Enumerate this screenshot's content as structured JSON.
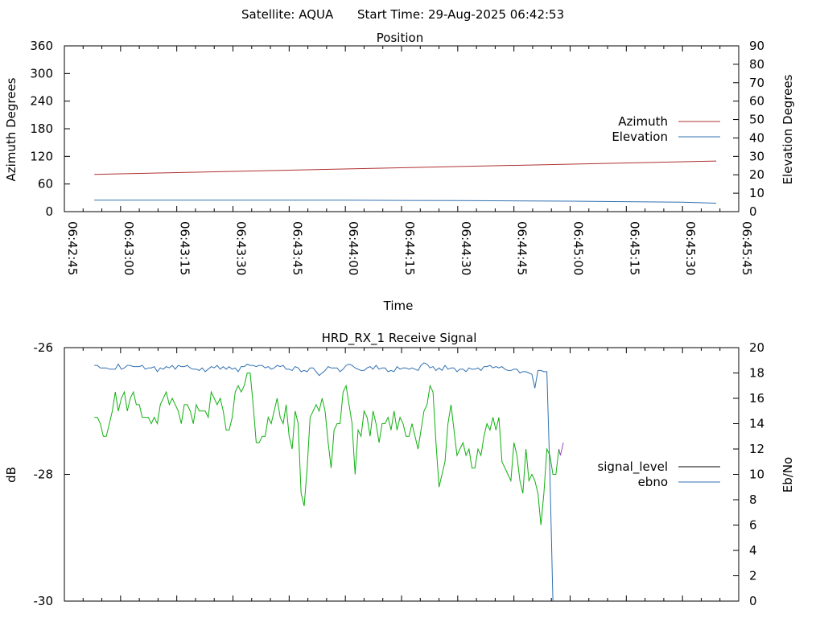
{
  "header": {
    "satellite_label": "Satellite: AQUA",
    "start_label": "Start Time: 29-Aug-2025 06:42:53"
  },
  "chart_data": [
    {
      "type": "line",
      "title": "Position",
      "xlabel": "Time",
      "ylabel": "Azimuth Degrees",
      "y2label": "Elevation Degrees",
      "xlim": [
        "06:42:45",
        "06:45:45"
      ],
      "ylim": [
        0,
        360
      ],
      "y2lim": [
        0,
        90
      ],
      "x_ticks": [
        "06:42:45",
        "06:43:00",
        "06:43:15",
        "06:43:30",
        "06:43:45",
        "06:44:00",
        "06:44:15",
        "06:44:30",
        "06:44:45",
        "06:45:00",
        "06:45:15",
        "06:45:30",
        "06:45:45"
      ],
      "y_ticks": [
        "0",
        "60",
        "120",
        "180",
        "240",
        "300",
        "360"
      ],
      "y2_ticks": [
        "0",
        "10",
        "20",
        "30",
        "40",
        "50",
        "60",
        "70",
        "80",
        "90"
      ],
      "legend": "right",
      "grid": false,
      "series": [
        {
          "name": "Azimuth",
          "axis": "left",
          "color": "#b03030",
          "x": [
            "06:42:53",
            "06:45:39"
          ],
          "y": [
            81,
            110
          ]
        },
        {
          "name": "Elevation",
          "axis": "right",
          "color": "#3070b0",
          "x": [
            "06:42:53",
            "06:43:30",
            "06:44:00",
            "06:44:30",
            "06:45:00",
            "06:45:30",
            "06:45:39"
          ],
          "y": [
            6.2,
            6.2,
            6.2,
            6.0,
            5.7,
            5.1,
            4.6
          ]
        }
      ]
    },
    {
      "type": "line",
      "title": "HRD_RX_1 Receive Signal",
      "ylabel": "dB",
      "y2label": "Eb/No",
      "xlim": [
        "06:42:45",
        "06:45:45"
      ],
      "ylim": [
        -30,
        -26
      ],
      "y2lim": [
        0,
        20
      ],
      "y_ticks": [
        "-26",
        "-28",
        "-30"
      ],
      "y2_ticks": [
        "0",
        "2",
        "4",
        "6",
        "8",
        "10",
        "12",
        "14",
        "16",
        "18",
        "20"
      ],
      "legend": "right",
      "grid": false,
      "series": [
        {
          "name": "signal_level",
          "axis": "left",
          "color": "#10b010",
          "t0": "06:42:53",
          "dt_seconds": 0.8,
          "y": [
            -27.1,
            -27.1,
            -27.2,
            -27.4,
            -27.4,
            -27.2,
            -27.0,
            -26.7,
            -27.0,
            -26.8,
            -26.7,
            -27.0,
            -26.8,
            -26.7,
            -26.9,
            -26.9,
            -27.1,
            -27.1,
            -27.1,
            -27.2,
            -27.1,
            -27.2,
            -26.9,
            -26.8,
            -26.7,
            -26.9,
            -26.8,
            -26.9,
            -27.0,
            -27.2,
            -26.9,
            -26.9,
            -27.0,
            -27.2,
            -26.9,
            -27.0,
            -27.0,
            -27.0,
            -27.1,
            -26.7,
            -26.8,
            -26.9,
            -26.8,
            -27.0,
            -27.3,
            -27.3,
            -27.1,
            -26.7,
            -26.6,
            -26.7,
            -26.6,
            -26.4,
            -26.4,
            -26.9,
            -27.5,
            -27.5,
            -27.4,
            -27.4,
            -27.1,
            -27.2,
            -27.0,
            -26.8,
            -27.1,
            -27.2,
            -26.9,
            -27.4,
            -27.6,
            -27.0,
            -27.2,
            -28.3,
            -28.5,
            -27.9,
            -27.1,
            -27.0,
            -26.9,
            -27.0,
            -26.8,
            -27.0,
            -27.5,
            -27.9,
            -27.3,
            -27.2,
            -27.2,
            -26.7,
            -26.6,
            -26.9,
            -27.2,
            -28.0,
            -27.3,
            -27.4,
            -27.0,
            -27.1,
            -27.4,
            -27.0,
            -27.2,
            -27.5,
            -27.2,
            -27.2,
            -27.1,
            -27.3,
            -27.0,
            -27.3,
            -27.1,
            -27.2,
            -27.4,
            -27.4,
            -27.2,
            -27.4,
            -27.6,
            -27.3,
            -27.0,
            -26.9,
            -26.6,
            -26.7,
            -27.5,
            -28.2,
            -28.0,
            -27.8,
            -27.2,
            -26.9,
            -27.3,
            -27.7,
            -27.6,
            -27.5,
            -27.7,
            -27.6,
            -27.9,
            -27.9,
            -27.6,
            -27.7,
            -27.4,
            -27.2,
            -27.3,
            -27.1,
            -27.3,
            -27.1,
            -27.8,
            -27.9,
            -28.0,
            -28.1,
            -27.5,
            -27.7,
            -28.1,
            -28.3,
            -27.6,
            -28.1,
            -28.0,
            -28.1,
            -28.3,
            -28.8,
            -28.3,
            -27.6,
            -27.7,
            -28.0,
            -28.0,
            -27.6
          ],
          "display_y": [
            -27.6,
            -27.7,
            -27.6,
            -27.5
          ]
        },
        {
          "name": "ebno",
          "axis": "right",
          "color": "#3070b0",
          "t0": "06:42:53",
          "dt_seconds": 0.8,
          "y": [
            18.6,
            18.6,
            18.4,
            18.4,
            18.4,
            18.3,
            18.3,
            18.3,
            18.7,
            18.3,
            18.4,
            18.6,
            18.6,
            18.5,
            18.5,
            18.5,
            18.6,
            18.3,
            18.4,
            18.4,
            18.5,
            18.1,
            18.4,
            18.3,
            18.5,
            18.4,
            18.6,
            18.3,
            18.6,
            18.5,
            18.5,
            18.6,
            18.4,
            18.3,
            18.3,
            18.2,
            18.4,
            18.1,
            18.3,
            18.5,
            18.4,
            18.6,
            18.3,
            18.5,
            18.3,
            18.5,
            18.3,
            18.4,
            18.1,
            18.5,
            18.5,
            18.7,
            18.6,
            18.6,
            18.5,
            18.6,
            18.6,
            18.4,
            18.5,
            18.3,
            18.4,
            18.6,
            18.5,
            18.6,
            18.3,
            18.3,
            18.2,
            18.5,
            18.4,
            18.1,
            18.2,
            18.1,
            18.4,
            18.4,
            18.1,
            17.8,
            18.0,
            18.2,
            18.5,
            18.4,
            18.4,
            18.4,
            18.1,
            18.3,
            18.6,
            18.7,
            18.6,
            18.4,
            18.3,
            18.2,
            18.2,
            18.4,
            18.5,
            18.3,
            18.6,
            18.3,
            18.4,
            18.4,
            18.1,
            18.2,
            18.1,
            18.5,
            18.3,
            18.4,
            18.4,
            18.3,
            18.4,
            18.3,
            18.2,
            18.6,
            18.8,
            18.7,
            18.4,
            18.5,
            18.2,
            18.4,
            18.2,
            18.6,
            18.3,
            18.4,
            18.4,
            18.1,
            18.3,
            18.3,
            18.1,
            18.4,
            18.3,
            18.3,
            18.4,
            18.2,
            18.5,
            18.5,
            18.6,
            18.4,
            18.5,
            18.4,
            18.5,
            18.3,
            18.2,
            18.2,
            18.3,
            18.3,
            18.0,
            18.1,
            18.1,
            18.0,
            17.9,
            16.8,
            18.2,
            18.2,
            18.1,
            18.1,
            10.0,
            0.0
          ]
        }
      ]
    }
  ]
}
